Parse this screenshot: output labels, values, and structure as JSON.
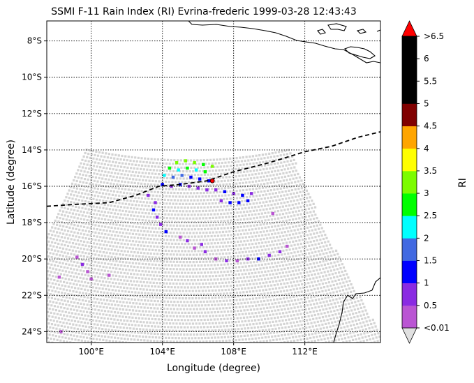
{
  "title": "SSMI F-11 Rain Index (RI) Evrina-frederic 1999-03-28 12:43:43",
  "map": {
    "xlabel": "Longitude (degree)",
    "ylabel": "Latitude (degree)",
    "lon_range": [
      97.5,
      116.25
    ],
    "lat_range": [
      -24.6,
      -6.9
    ],
    "x_ticks": [
      {
        "value": 100,
        "label": "100°E"
      },
      {
        "value": 104,
        "label": "104°E"
      },
      {
        "value": 108,
        "label": "108°E"
      },
      {
        "value": 112,
        "label": "112°E"
      }
    ],
    "y_ticks": [
      {
        "value": -8,
        "label": "8°S"
      },
      {
        "value": -10,
        "label": "10°S"
      },
      {
        "value": -12,
        "label": "12°S"
      },
      {
        "value": -14,
        "label": "14°S"
      },
      {
        "value": -16,
        "label": "16°S"
      },
      {
        "value": -18,
        "label": "18°S"
      },
      {
        "value": -20,
        "label": "20°S"
      },
      {
        "value": -22,
        "label": "22°S"
      },
      {
        "value": -24,
        "label": "24°S"
      }
    ],
    "gridlines": true,
    "no_rain_color": "#d3d3d3",
    "track": [
      [
        97.5,
        -17.1
      ],
      [
        99.0,
        -17.0
      ],
      [
        101.0,
        -16.9
      ],
      [
        102.5,
        -16.5
      ],
      [
        103.8,
        -16.0
      ],
      [
        105.0,
        -15.9
      ],
      [
        106.5,
        -15.7
      ],
      [
        108.0,
        -15.2
      ],
      [
        110.0,
        -14.7
      ],
      [
        112.0,
        -14.1
      ],
      [
        113.5,
        -13.8
      ],
      [
        115.0,
        -13.3
      ],
      [
        116.25,
        -13.0
      ]
    ],
    "storm_center": [
      106.8,
      -15.7
    ],
    "rain_cells": [
      {
        "lon": 104.8,
        "lat": -14.7,
        "ri": 3.2
      },
      {
        "lon": 105.3,
        "lat": -14.6,
        "ri": 3.3
      },
      {
        "lon": 105.8,
        "lat": -14.7,
        "ri": 3.1
      },
      {
        "lon": 106.3,
        "lat": -14.8,
        "ri": 3.0
      },
      {
        "lon": 106.8,
        "lat": -14.9,
        "ri": 3.2
      },
      {
        "lon": 104.4,
        "lat": -15.0,
        "ri": 2.8
      },
      {
        "lon": 104.9,
        "lat": -15.1,
        "ri": 2.2
      },
      {
        "lon": 105.4,
        "lat": -15.0,
        "ri": 2.7
      },
      {
        "lon": 105.9,
        "lat": -15.1,
        "ri": 2.3
      },
      {
        "lon": 106.4,
        "lat": -15.2,
        "ri": 2.9
      },
      {
        "lon": 104.1,
        "lat": -15.4,
        "ri": 2.4
      },
      {
        "lon": 104.6,
        "lat": -15.5,
        "ri": 1.7
      },
      {
        "lon": 105.1,
        "lat": -15.4,
        "ri": 1.8
      },
      {
        "lon": 105.6,
        "lat": -15.5,
        "ri": 1.4
      },
      {
        "lon": 106.1,
        "lat": -15.6,
        "ri": 1.2
      },
      {
        "lon": 106.6,
        "lat": -15.7,
        "ri": 1.3
      },
      {
        "lon": 104.0,
        "lat": -15.9,
        "ri": 1.3
      },
      {
        "lon": 104.5,
        "lat": -16.0,
        "ri": 0.8
      },
      {
        "lon": 105.0,
        "lat": -15.9,
        "ri": 1.1
      },
      {
        "lon": 105.5,
        "lat": -16.0,
        "ri": 0.7
      },
      {
        "lon": 106.0,
        "lat": -16.1,
        "ri": 0.6
      },
      {
        "lon": 106.5,
        "lat": -16.2,
        "ri": 0.8
      },
      {
        "lon": 107.0,
        "lat": -16.2,
        "ri": 0.6
      },
      {
        "lon": 107.5,
        "lat": -16.3,
        "ri": 1.1
      },
      {
        "lon": 108.0,
        "lat": -16.4,
        "ri": 0.9
      },
      {
        "lon": 108.5,
        "lat": -16.5,
        "ri": 1.2
      },
      {
        "lon": 109.0,
        "lat": -16.4,
        "ri": 0.7
      },
      {
        "lon": 107.3,
        "lat": -16.8,
        "ri": 0.8
      },
      {
        "lon": 107.8,
        "lat": -16.9,
        "ri": 1.3
      },
      {
        "lon": 108.3,
        "lat": -16.9,
        "ri": 1.4
      },
      {
        "lon": 108.8,
        "lat": -16.8,
        "ri": 1.2
      },
      {
        "lon": 103.2,
        "lat": -16.5,
        "ri": 0.6
      },
      {
        "lon": 103.6,
        "lat": -16.9,
        "ri": 0.9
      },
      {
        "lon": 103.5,
        "lat": -17.3,
        "ri": 1.2
      },
      {
        "lon": 103.7,
        "lat": -17.7,
        "ri": 0.8
      },
      {
        "lon": 103.9,
        "lat": -18.1,
        "ri": 0.7
      },
      {
        "lon": 104.2,
        "lat": -18.5,
        "ri": 1.1
      },
      {
        "lon": 105.0,
        "lat": -18.8,
        "ri": 0.4
      },
      {
        "lon": 105.4,
        "lat": -19.0,
        "ri": 0.6
      },
      {
        "lon": 105.8,
        "lat": -19.4,
        "ri": 0.5
      },
      {
        "lon": 106.2,
        "lat": -19.2,
        "ri": 0.7
      },
      {
        "lon": 106.4,
        "lat": -19.6,
        "ri": 0.6
      },
      {
        "lon": 107.0,
        "lat": -20.0,
        "ri": 0.4
      },
      {
        "lon": 107.6,
        "lat": -20.1,
        "ri": 0.6
      },
      {
        "lon": 108.2,
        "lat": -20.1,
        "ri": 0.5
      },
      {
        "lon": 108.8,
        "lat": -20.0,
        "ri": 0.6
      },
      {
        "lon": 109.4,
        "lat": -20.0,
        "ri": 1.2
      },
      {
        "lon": 110.0,
        "lat": -19.8,
        "ri": 0.7
      },
      {
        "lon": 110.6,
        "lat": -19.6,
        "ri": 0.6
      },
      {
        "lon": 111.0,
        "lat": -19.3,
        "ri": 0.4
      },
      {
        "lon": 110.2,
        "lat": -17.5,
        "ri": 0.4
      },
      {
        "lon": 99.2,
        "lat": -19.9,
        "ri": 0.4
      },
      {
        "lon": 99.5,
        "lat": -20.3,
        "ri": 0.6
      },
      {
        "lon": 99.8,
        "lat": -20.7,
        "ri": 0.5
      },
      {
        "lon": 100.0,
        "lat": -21.1,
        "ri": 0.4
      },
      {
        "lon": 101.0,
        "lat": -20.9,
        "ri": 0.5
      },
      {
        "lon": 98.2,
        "lat": -21.0,
        "ri": 0.3
      },
      {
        "lon": 98.3,
        "lat": -24.0,
        "ri": 0.3
      }
    ]
  },
  "colorbar": {
    "label": "RI",
    "under_label": "<0.01",
    "over_label": ">6.5",
    "over_color": "#ff0000",
    "under_color": "#e0e0e0",
    "bins": [
      {
        "label": "0.5",
        "color": "#ba55d3"
      },
      {
        "label": "1",
        "color": "#8a2be2"
      },
      {
        "label": "1.5",
        "color": "#0000ff"
      },
      {
        "label": "2",
        "color": "#4169e1"
      },
      {
        "label": "2.5",
        "color": "#00ffff"
      },
      {
        "label": "3",
        "color": "#00ff00"
      },
      {
        "label": "3.5",
        "color": "#7cfc00"
      },
      {
        "label": "4",
        "color": "#ffff00"
      },
      {
        "label": "4.5",
        "color": "#ffa500"
      },
      {
        "label": "5",
        "color": "#800000"
      },
      {
        "label": "5.5",
        "color": "#000000"
      },
      {
        "label": "6",
        "color": "#000000"
      },
      {
        "label": "6.5",
        "color": "#000000"
      }
    ]
  }
}
